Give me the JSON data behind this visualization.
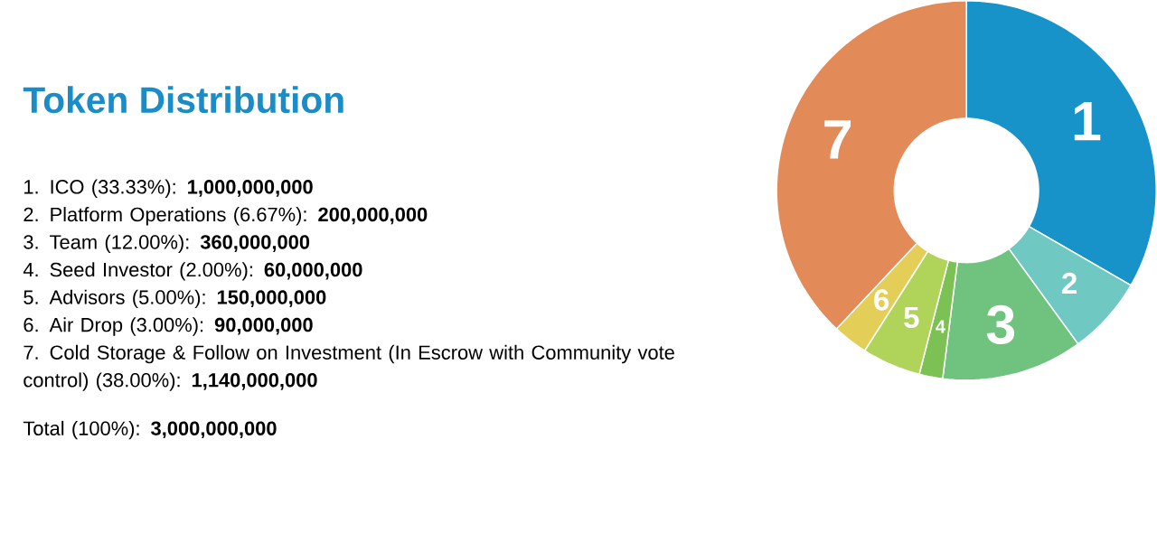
{
  "chart_data": {
    "type": "donut",
    "title": "Token Distribution",
    "categories": [
      "1",
      "2",
      "3",
      "4",
      "5",
      "6",
      "7"
    ],
    "values": [
      33.33,
      6.67,
      12.0,
      2.0,
      5.0,
      3.0,
      38.0
    ],
    "colors": [
      "#1793c9",
      "#6fc8c2",
      "#6fc37f",
      "#7bc153",
      "#b0d35a",
      "#e3cf57",
      "#e28a58"
    ],
    "annotations": [
      "1. ICO (33.33%): **1,000,000,000**",
      "2. Platform Operations (6.67%): **200,000,000**",
      "3. Team (12.00%): **360,000,000**",
      "4. Seed Investor (2.00%): **60,000,000**",
      "5. Advisors (5.00%): **150,000,000**",
      "6. Air Drop (3.00%): **90,000,000**",
      "7. Cold Storage & Follow on Investment (In Escrow with Community vote control) (38.00%): **1,140,000,000**",
      "Total (100%): **3,000,000,000**"
    ]
  }
}
